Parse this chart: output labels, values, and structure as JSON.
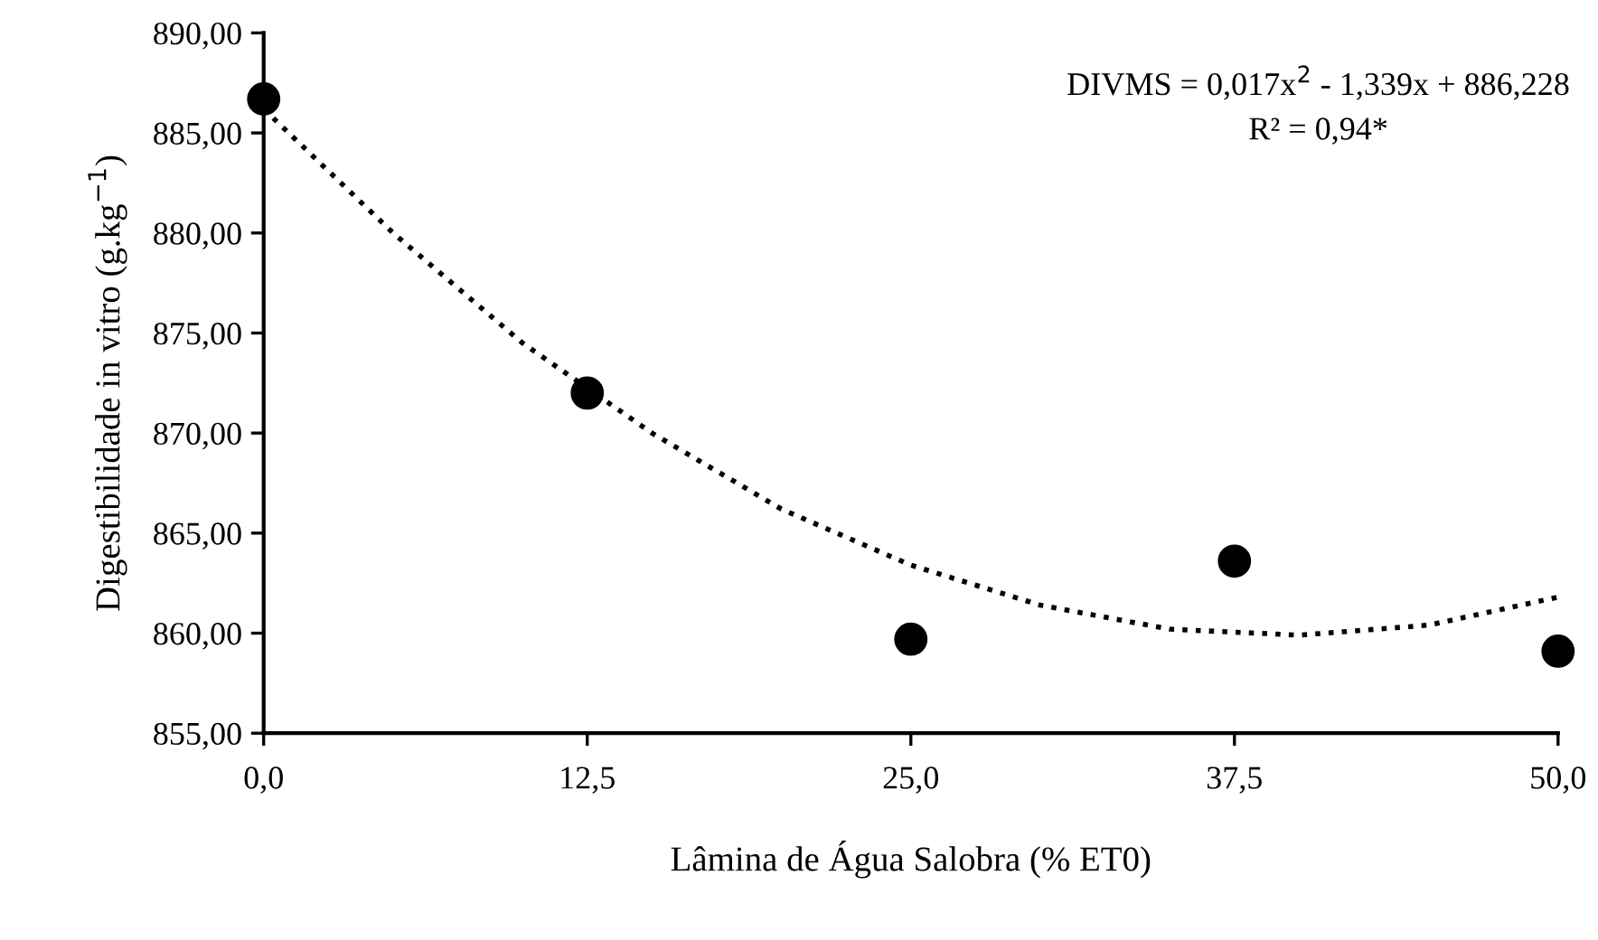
{
  "chart_data": {
    "type": "scatter",
    "xlabel": "Lâmina de Água Salobra (% ET0)",
    "ylabel": "Digestibilidade in vitro (g.kg$^{−1}$)",
    "annotations": [
      "DIVMS = 0,017x$^{2}$ - 1,339x + 886,228",
      "R² = 0,94*"
    ],
    "xlim": [
      0,
      50
    ],
    "ylim": [
      855,
      890
    ],
    "xticks": [
      {
        "value": 0,
        "label": "0,0"
      },
      {
        "value": 12.5,
        "label": "12,5"
      },
      {
        "value": 25,
        "label": "25,0"
      },
      {
        "value": 37.5,
        "label": "37,5"
      },
      {
        "value": 50,
        "label": "50,0"
      }
    ],
    "yticks": [
      {
        "value": 855,
        "label": "855,00"
      },
      {
        "value": 860,
        "label": "860,00"
      },
      {
        "value": 865,
        "label": "865,00"
      },
      {
        "value": 870,
        "label": "870,00"
      },
      {
        "value": 875,
        "label": "875,00"
      },
      {
        "value": 880,
        "label": "880,00"
      },
      {
        "value": 885,
        "label": "885,00"
      },
      {
        "value": 890,
        "label": "890,00"
      }
    ],
    "grid": false,
    "legend": false,
    "series": [
      {
        "type": "line",
        "color": "#000000",
        "line_style": "dotted",
        "marker": "none",
        "x": [
          0,
          5,
          10,
          15,
          20,
          25,
          30,
          35,
          40,
          45,
          50
        ],
        "values": [
          886.2,
          880.0,
          874.5,
          870.0,
          866.2,
          863.4,
          861.4,
          860.2,
          859.9,
          860.4,
          861.8
        ]
      },
      {
        "color": "#000000",
        "marker": "circle",
        "x": [
          0,
          12.5,
          25,
          37.5,
          50
        ],
        "values": [
          886.7,
          872.0,
          859.7,
          863.6,
          859.1
        ]
      }
    ]
  }
}
